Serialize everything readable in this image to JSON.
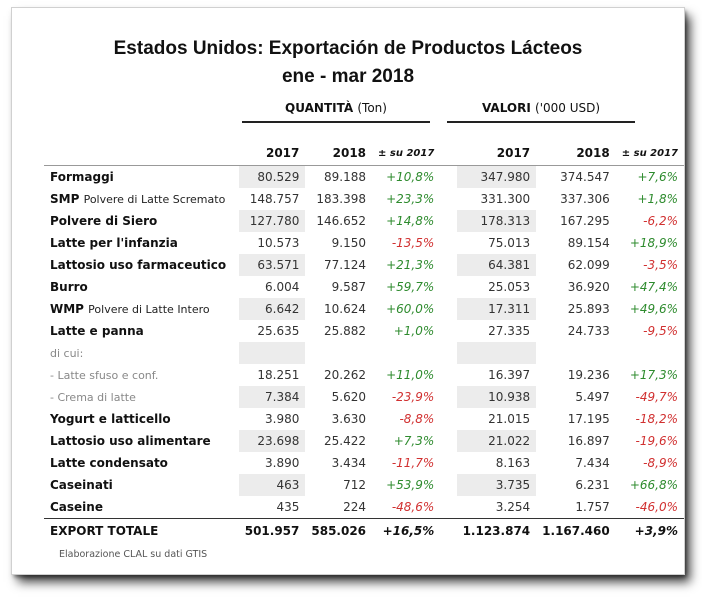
{
  "title_line1": "Estados Unidos: Exportación de Productos Lácteos",
  "title_line2": "ene - mar 2018",
  "groups": {
    "quantity": {
      "label": "QUANTITÀ",
      "unit": "(Ton)"
    },
    "value": {
      "label": "VALORI",
      "unit": "('000 USD)"
    }
  },
  "col_headers": [
    "2017",
    "2018",
    "± su 2017",
    "2017",
    "2018",
    "± su 2017"
  ],
  "rows": [
    {
      "label": "Formaggi",
      "sub": "",
      "q17": "80.529",
      "q18": "89.188",
      "qpct": "+10,8%",
      "v17": "347.980",
      "v18": "374.547",
      "vpct": "+7,6%",
      "style": "main"
    },
    {
      "label": "SMP",
      "sub": "Polvere di Latte Scremato",
      "q17": "148.757",
      "q18": "183.398",
      "qpct": "+23,3%",
      "v17": "331.300",
      "v18": "337.306",
      "vpct": "+1,8%",
      "style": "main"
    },
    {
      "label": "Polvere di Siero",
      "sub": "",
      "q17": "127.780",
      "q18": "146.652",
      "qpct": "+14,8%",
      "v17": "178.313",
      "v18": "167.295",
      "vpct": "-6,2%",
      "style": "main"
    },
    {
      "label": "Latte per l'infanzia",
      "sub": "",
      "q17": "10.573",
      "q18": "9.150",
      "qpct": "-13,5%",
      "v17": "75.013",
      "v18": "89.154",
      "vpct": "+18,9%",
      "style": "main"
    },
    {
      "label": "Lattosio uso farmaceutico",
      "sub": "",
      "q17": "63.571",
      "q18": "77.124",
      "qpct": "+21,3%",
      "v17": "64.381",
      "v18": "62.099",
      "vpct": "-3,5%",
      "style": "main"
    },
    {
      "label": "Burro",
      "sub": "",
      "q17": "6.004",
      "q18": "9.587",
      "qpct": "+59,7%",
      "v17": "25.053",
      "v18": "36.920",
      "vpct": "+47,4%",
      "style": "main"
    },
    {
      "label": "WMP",
      "sub": "Polvere di Latte Intero",
      "q17": "6.642",
      "q18": "10.624",
      "qpct": "+60,0%",
      "v17": "17.311",
      "v18": "25.893",
      "vpct": "+49,6%",
      "style": "main"
    },
    {
      "label": "Latte e panna",
      "sub": "",
      "q17": "25.635",
      "q18": "25.882",
      "qpct": "+1,0%",
      "v17": "27.335",
      "v18": "24.733",
      "vpct": "-9,5%",
      "style": "main"
    },
    {
      "label": "di cui:",
      "sub": "",
      "q17": "",
      "q18": "",
      "qpct": "",
      "v17": "",
      "v18": "",
      "vpct": "",
      "style": "small"
    },
    {
      "label": "- Latte sfuso e conf.",
      "sub": "",
      "q17": "18.251",
      "q18": "20.262",
      "qpct": "+11,0%",
      "v17": "16.397",
      "v18": "19.236",
      "vpct": "+17,3%",
      "style": "small"
    },
    {
      "label": "- Crema di latte",
      "sub": "",
      "q17": "7.384",
      "q18": "5.620",
      "qpct": "-23,9%",
      "v17": "10.938",
      "v18": "5.497",
      "vpct": "-49,7%",
      "style": "small"
    },
    {
      "label": "Yogurt e latticello",
      "sub": "",
      "q17": "3.980",
      "q18": "3.630",
      "qpct": "-8,8%",
      "v17": "21.015",
      "v18": "17.195",
      "vpct": "-18,2%",
      "style": "main"
    },
    {
      "label": "Lattosio uso alimentare",
      "sub": "",
      "q17": "23.698",
      "q18": "25.422",
      "qpct": "+7,3%",
      "v17": "21.022",
      "v18": "16.897",
      "vpct": "-19,6%",
      "style": "main"
    },
    {
      "label": "Latte condensato",
      "sub": "",
      "q17": "3.890",
      "q18": "3.434",
      "qpct": "-11,7%",
      "v17": "8.163",
      "v18": "7.434",
      "vpct": "-8,9%",
      "style": "main"
    },
    {
      "label": "Caseinati",
      "sub": "",
      "q17": "463",
      "q18": "712",
      "qpct": "+53,9%",
      "v17": "3.735",
      "v18": "6.231",
      "vpct": "+66,8%",
      "style": "main"
    },
    {
      "label": "Caseine",
      "sub": "",
      "q17": "435",
      "q18": "224",
      "qpct": "-48,6%",
      "v17": "3.254",
      "v18": "1.757",
      "vpct": "-46,0%",
      "style": "main"
    }
  ],
  "total": {
    "label": "EXPORT TOTALE",
    "q17": "501.957",
    "q18": "585.026",
    "qpct": "+16,5%",
    "v17": "1.123.874",
    "v18": "1.167.460",
    "vpct": "+3,9%"
  },
  "source": "Elaborazione CLAL su dati GTIS",
  "colors": {
    "positive": "#2e8b2e",
    "negative": "#d13030",
    "stripe": "#ececec"
  }
}
